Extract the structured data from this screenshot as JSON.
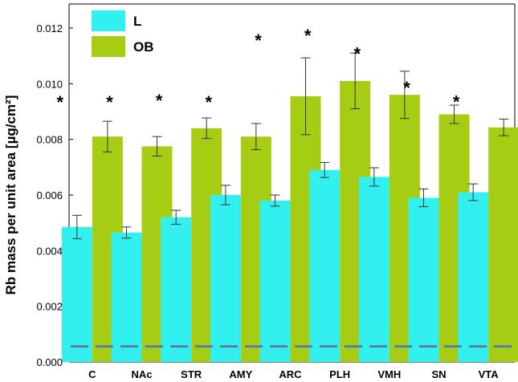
{
  "chart_data": {
    "type": "bar",
    "title": "",
    "xlabel": "",
    "ylabel": "Rb mass per unit area [µg/cm²]",
    "ylim": [
      0,
      0.0125
    ],
    "yticks": [
      "0.000",
      "0.002",
      "0.004",
      "0.006",
      "0.008",
      "0.010",
      "0.012"
    ],
    "yticks_values": [
      0,
      0.002,
      0.004,
      0.006,
      0.008,
      0.01,
      0.012
    ],
    "categories": [
      "C",
      "NAc",
      "STR",
      "AMY",
      "ARC",
      "PLH",
      "VMH",
      "SN",
      "VTA"
    ],
    "series": [
      {
        "name": "L",
        "color": "#33f0f0",
        "values": [
          0.00485,
          0.00465,
          0.0052,
          0.006,
          0.0058,
          0.0069,
          0.00665,
          0.0059,
          0.0061
        ],
        "errors": [
          0.00042,
          0.0002,
          0.00025,
          0.00035,
          0.0002,
          0.00027,
          0.00033,
          0.00032,
          0.0003
        ]
      },
      {
        "name": "OB",
        "color": "#a6cc14",
        "values": [
          0.0081,
          0.00775,
          0.0084,
          0.0081,
          0.00955,
          0.0101,
          0.0096,
          0.0089,
          0.00843
        ],
        "errors": [
          0.00055,
          0.00035,
          0.00037,
          0.00047,
          0.00138,
          0.001,
          0.00085,
          0.00033,
          0.0003
        ]
      }
    ],
    "significance_marker": "*",
    "reference_line": {
      "value": 0.00056,
      "color": "#5a7fa3",
      "style": "dashed"
    },
    "legend": {
      "position": "top-left",
      "entries": [
        "L",
        "OB"
      ]
    }
  }
}
